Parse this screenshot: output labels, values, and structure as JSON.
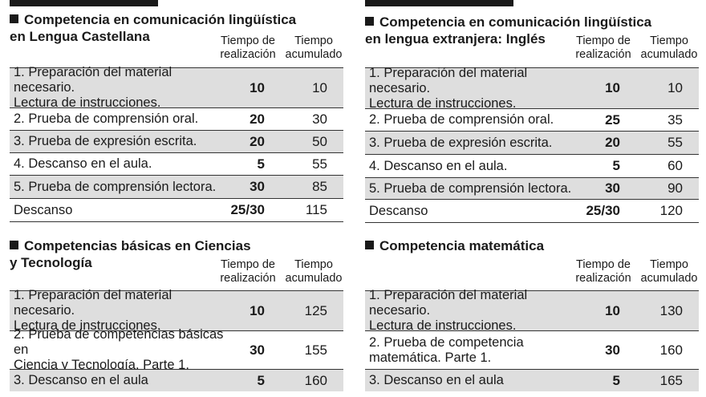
{
  "columns": {
    "realizacion": "Tiempo de\nrealización",
    "acumulado": "Tiempo\nacumulado"
  },
  "sections": [
    {
      "title": [
        "Competencia en comunicación lingüística",
        "en Lengua Castellana"
      ],
      "rows": [
        {
          "label": "1. Preparación del material necesario.\nLectura de instrucciones.",
          "real": "10",
          "acum": "10"
        },
        {
          "label": "2. Prueba de comprensión oral.",
          "real": "20",
          "acum": "30"
        },
        {
          "label": "3. Prueba de expresión escrita.",
          "real": "20",
          "acum": "50"
        },
        {
          "label": "4. Descanso en el aula.",
          "real": "5",
          "acum": "55"
        },
        {
          "label": "5. Prueba de comprensión lectora.",
          "real": "30",
          "acum": "85"
        },
        {
          "label": "Descanso",
          "real": "25/30",
          "acum": "115"
        }
      ]
    },
    {
      "title": [
        "Competencia en comunicación lingüística",
        "en lengua extranjera: Inglés"
      ],
      "rows": [
        {
          "label": "1. Preparación del material necesario.\nLectura de instrucciones.",
          "real": "10",
          "acum": "10"
        },
        {
          "label": "2. Prueba de comprensión oral.",
          "real": "25",
          "acum": "35"
        },
        {
          "label": "3. Prueba de expresión escrita.",
          "real": "20",
          "acum": "55"
        },
        {
          "label": "4. Descanso en el aula.",
          "real": "5",
          "acum": "60"
        },
        {
          "label": "5. Prueba de comprensión lectora.",
          "real": "30",
          "acum": "90"
        },
        {
          "label": "Descanso",
          "real": "25/30",
          "acum": "120"
        }
      ]
    },
    {
      "title": [
        "Competencias básicas en Ciencias",
        "y Tecnología"
      ],
      "rows": [
        {
          "label": "1. Preparación del material necesario.\nLectura de instrucciones.",
          "real": "10",
          "acum": "125"
        },
        {
          "label": "2. Prueba de competencias básicas en\nCiencia y Tecnología. Parte 1.",
          "real": "30",
          "acum": "155"
        },
        {
          "label": "3. Descanso en el aula",
          "real": "5",
          "acum": "160"
        }
      ]
    },
    {
      "title": [
        "Competencia matemática"
      ],
      "rows": [
        {
          "label": "1. Preparación del material necesario.\nLectura de instrucciones.",
          "real": "10",
          "acum": "130"
        },
        {
          "label": "2. Prueba de competencia\nmatemática. Parte 1.",
          "real": "30",
          "acum": "160"
        },
        {
          "label": "3. Descanso en el aula",
          "real": "5",
          "acum": "165"
        }
      ]
    }
  ]
}
